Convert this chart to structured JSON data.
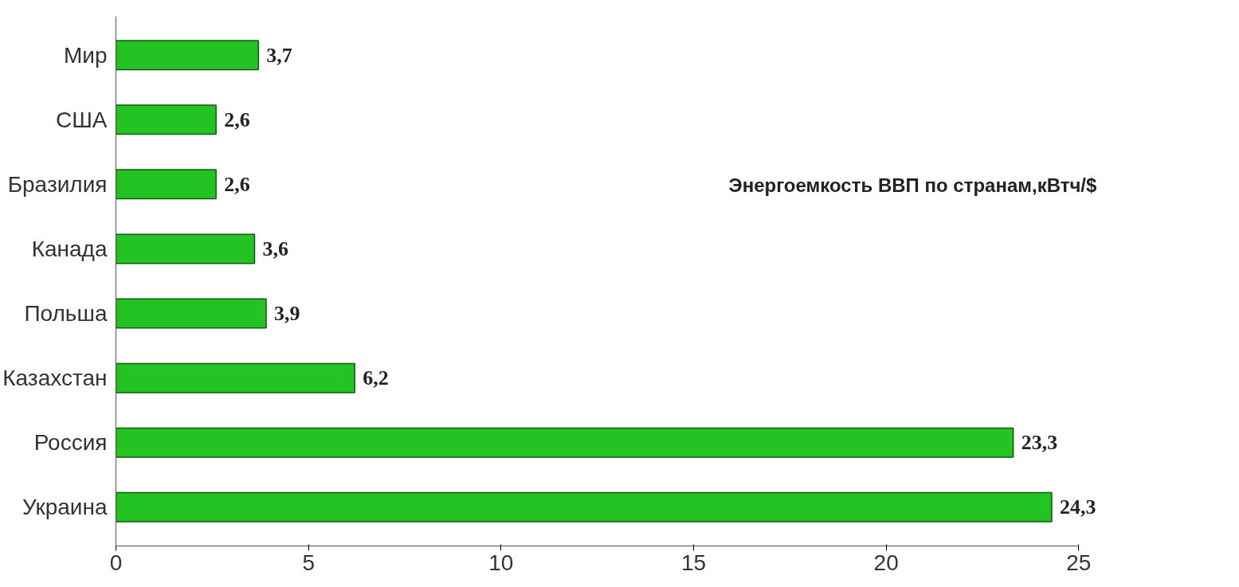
{
  "chart_data": {
    "type": "bar",
    "orientation": "horizontal",
    "categories": [
      "Мир",
      "США",
      "Бразилия",
      "Канада",
      "Польша",
      "Казахстан",
      "Россия",
      "Украина"
    ],
    "values": [
      3.7,
      2.6,
      2.6,
      3.6,
      3.9,
      6.2,
      23.3,
      24.3
    ],
    "value_labels": [
      "3,7",
      "2,6",
      "2,6",
      "3,6",
      "3,9",
      "6,2",
      "23,3",
      "24,3"
    ],
    "color": "#22c322",
    "xlim": [
      0,
      25
    ],
    "xticks": [
      0,
      5,
      10,
      15,
      20,
      25
    ],
    "annotations": [
      "Энергоемкость ВВП по странам,кВтч/$"
    ],
    "grid": false,
    "legend": false
  }
}
